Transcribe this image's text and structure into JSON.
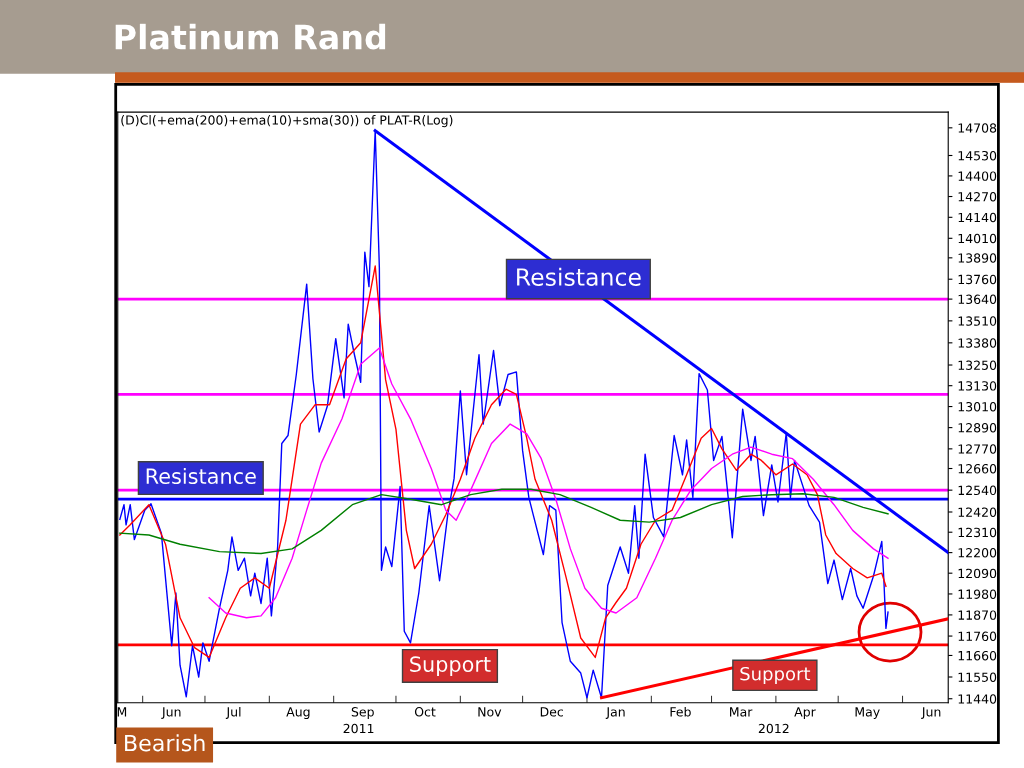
{
  "chart_data": {
    "type": "line",
    "title": "Platinum Rand",
    "subtitle": "(D)Cl(+ema(200)+ema(10)+sma(30)) of PLAT-R(Log)",
    "log": true,
    "xlim": [
      "2011-05-20",
      "2012-06-23"
    ],
    "xticks": [
      {
        "value": "2011-05-22",
        "label": "M"
      },
      {
        "value": "2011-06-01",
        "label": null
      },
      {
        "value": "2011-06-15",
        "label": "Jun"
      },
      {
        "value": "2011-07-01",
        "label": null
      },
      {
        "value": "2011-07-15",
        "label": "Jul"
      },
      {
        "value": "2011-08-01",
        "label": null
      },
      {
        "value": "2011-08-15",
        "label": "Aug"
      },
      {
        "value": "2011-09-01",
        "label": null
      },
      {
        "value": "2011-09-15",
        "label": "Sep"
      },
      {
        "value": "2011-10-01",
        "label": null
      },
      {
        "value": "2011-10-15",
        "label": "Oct"
      },
      {
        "value": "2011-11-01",
        "label": null
      },
      {
        "value": "2011-11-15",
        "label": "Nov"
      },
      {
        "value": "2011-12-01",
        "label": null
      },
      {
        "value": "2011-12-15",
        "label": "Dec"
      },
      {
        "value": "2012-01-01",
        "label": null
      },
      {
        "value": "2012-01-15",
        "label": "Jan"
      },
      {
        "value": "2012-02-01",
        "label": null
      },
      {
        "value": "2012-02-15",
        "label": "Feb"
      },
      {
        "value": "2012-03-01",
        "label": null
      },
      {
        "value": "2012-03-15",
        "label": "Mar"
      },
      {
        "value": "2012-04-01",
        "label": null
      },
      {
        "value": "2012-04-15",
        "label": "Apr"
      },
      {
        "value": "2012-05-01",
        "label": null
      },
      {
        "value": "2012-05-15",
        "label": "May"
      },
      {
        "value": "2012-06-01",
        "label": null
      },
      {
        "value": "2012-06-15",
        "label": "Jun"
      }
    ],
    "ylim": [
      11420,
      14810
    ],
    "yticks": [
      11440,
      11550,
      11660,
      11760,
      11870,
      11980,
      12090,
      12200,
      12310,
      12420,
      12540,
      12660,
      12770,
      12890,
      13010,
      13130,
      13250,
      13380,
      13510,
      13640,
      13760,
      13890,
      14010,
      14140,
      14270,
      14400,
      14530,
      14708
    ],
    "series": [
      {
        "color": "#0000ff",
        "x": [
          "2011-05-21",
          "2011-05-23",
          "2011-05-24",
          "2011-05-26",
          "2011-05-28",
          "2011-05-31",
          "2011-06-02",
          "2011-06-05",
          "2011-06-10",
          "2011-06-15",
          "2011-06-17",
          "2011-06-19",
          "2011-06-22",
          "2011-06-25",
          "2011-06-28",
          "2011-06-30",
          "2011-07-03",
          "2011-07-08",
          "2011-07-12",
          "2011-07-14",
          "2011-07-17",
          "2011-07-20",
          "2011-07-23",
          "2011-07-25",
          "2011-07-28",
          "2011-07-31",
          "2011-08-02",
          "2011-08-05",
          "2011-08-07",
          "2011-08-10",
          "2011-08-14",
          "2011-08-19",
          "2011-08-22",
          "2011-08-25",
          "2011-08-29",
          "2011-09-02",
          "2011-09-06",
          "2011-09-08",
          "2011-09-11",
          "2011-09-14",
          "2011-09-16",
          "2011-09-18",
          "2011-09-21",
          "2011-09-23",
          "2011-09-24",
          "2011-09-26",
          "2011-09-29",
          "2011-10-03",
          "2011-10-05",
          "2011-10-08",
          "2011-10-12",
          "2011-10-17",
          "2011-10-22",
          "2011-10-26",
          "2011-10-29",
          "2011-11-01",
          "2011-11-04",
          "2011-11-10",
          "2011-11-12",
          "2011-11-17",
          "2011-11-20",
          "2011-11-24",
          "2011-11-28",
          "2011-12-01",
          "2011-12-04",
          "2011-12-06",
          "2011-12-11",
          "2011-12-14",
          "2011-12-17",
          "2011-12-20",
          "2011-12-24",
          "2011-12-29",
          "2012-01-01",
          "2012-01-04",
          "2012-01-08",
          "2012-01-11",
          "2012-01-17",
          "2012-01-21",
          "2012-01-24",
          "2012-01-26",
          "2012-01-29",
          "2012-02-02",
          "2012-02-07",
          "2012-02-12",
          "2012-02-16",
          "2012-02-18",
          "2012-02-21",
          "2012-02-24",
          "2012-02-28",
          "2012-03-02",
          "2012-03-06",
          "2012-03-11",
          "2012-03-16",
          "2012-03-20",
          "2012-03-22",
          "2012-03-26",
          "2012-03-30",
          "2012-04-02",
          "2012-04-06",
          "2012-04-08",
          "2012-04-10",
          "2012-04-17",
          "2012-04-22",
          "2012-04-26",
          "2012-04-29",
          "2012-05-03",
          "2012-05-07",
          "2012-05-10",
          "2012-05-13",
          "2012-05-18",
          "2012-05-22",
          "2012-05-23",
          "2012-05-24",
          "2012-05-25"
        ],
        "values": [
          12380,
          12460,
          12350,
          12460,
          12270,
          12365,
          12430,
          12465,
          12305,
          11710,
          11985,
          11610,
          11450,
          11710,
          11550,
          11725,
          11630,
          11905,
          12105,
          12285,
          12105,
          12170,
          11970,
          12090,
          11930,
          12170,
          11865,
          12230,
          12800,
          12845,
          13195,
          13730,
          13170,
          12865,
          13015,
          13405,
          13060,
          13490,
          13310,
          13150,
          13925,
          13715,
          14690,
          13830,
          12105,
          12230,
          12125,
          12560,
          11785,
          11725,
          11985,
          12455,
          12050,
          12410,
          12605,
          13100,
          12625,
          13310,
          12910,
          13335,
          13015,
          13195,
          13210,
          12760,
          12500,
          12410,
          12190,
          12455,
          12430,
          11830,
          11630,
          11570,
          11445,
          11585,
          11445,
          12025,
          12230,
          12090,
          12455,
          12170,
          12740,
          12390,
          12285,
          12845,
          12625,
          12820,
          12500,
          13200,
          13105,
          12705,
          12840,
          12280,
          12995,
          12705,
          12840,
          12400,
          12680,
          12475,
          12860,
          12500,
          12705,
          12455,
          12365,
          12035,
          12160,
          11950,
          12115,
          11970,
          11905,
          12075,
          12260,
          12055,
          11800,
          11885
        ]
      },
      {
        "color": "#ff0000",
        "x": [
          "2011-05-21",
          "2011-05-26",
          "2011-06-04",
          "2011-06-12",
          "2011-06-19",
          "2011-06-26",
          "2011-07-03",
          "2011-07-11",
          "2011-07-18",
          "2011-07-25",
          "2011-08-01",
          "2011-08-09",
          "2011-08-16",
          "2011-08-23",
          "2011-08-30",
          "2011-09-07",
          "2011-09-14",
          "2011-09-21",
          "2011-09-26",
          "2011-10-01",
          "2011-10-06",
          "2011-10-10",
          "2011-10-18",
          "2011-10-25",
          "2011-11-01",
          "2011-11-08",
          "2011-11-16",
          "2011-11-23",
          "2011-11-28",
          "2011-12-03",
          "2011-12-07",
          "2011-12-15",
          "2011-12-22",
          "2011-12-29",
          "2012-01-05",
          "2012-01-10",
          "2012-01-15",
          "2012-01-20",
          "2012-01-27",
          "2012-02-03",
          "2012-02-11",
          "2012-02-18",
          "2012-02-25",
          "2012-03-01",
          "2012-03-06",
          "2012-03-13",
          "2012-03-20",
          "2012-03-25",
          "2012-04-01",
          "2012-04-09",
          "2012-04-16",
          "2012-04-21",
          "2012-04-25",
          "2012-04-30",
          "2012-05-08",
          "2012-05-15",
          "2012-05-22",
          "2012-05-24"
        ],
        "values": [
          12295,
          12350,
          12460,
          12245,
          11855,
          11700,
          11650,
          11855,
          12010,
          12065,
          12010,
          12375,
          12910,
          13020,
          13020,
          13285,
          13380,
          13840,
          13165,
          12880,
          12320,
          12115,
          12245,
          12405,
          12600,
          12830,
          13020,
          13110,
          13080,
          12830,
          12600,
          12375,
          12065,
          11750,
          11650,
          11855,
          11935,
          12010,
          12245,
          12375,
          12430,
          12625,
          12830,
          12885,
          12770,
          12650,
          12740,
          12705,
          12625,
          12685,
          12625,
          12515,
          12295,
          12195,
          12115,
          12065,
          12090,
          12020
        ]
      },
      {
        "color": "#ff00ff",
        "x": [
          "2011-07-03",
          "2011-07-11",
          "2011-07-21",
          "2011-07-28",
          "2011-08-04",
          "2011-08-12",
          "2011-08-19",
          "2011-08-26",
          "2011-09-05",
          "2011-09-14",
          "2011-09-23",
          "2011-09-29",
          "2011-10-08",
          "2011-10-18",
          "2011-10-25",
          "2011-10-30",
          "2011-11-06",
          "2011-11-16",
          "2011-11-25",
          "2011-12-03",
          "2011-12-10",
          "2011-12-17",
          "2011-12-24",
          "2011-12-31",
          "2012-01-08",
          "2012-01-15",
          "2012-01-25",
          "2012-02-03",
          "2012-02-11",
          "2012-02-20",
          "2012-03-01",
          "2012-03-11",
          "2012-03-20",
          "2012-03-30",
          "2012-04-09",
          "2012-04-19",
          "2012-04-29",
          "2012-05-08",
          "2012-05-18",
          "2012-05-25"
        ],
        "values": [
          11960,
          11880,
          11855,
          11865,
          11960,
          12170,
          12430,
          12690,
          12940,
          13255,
          13350,
          13140,
          12940,
          12660,
          12430,
          12375,
          12540,
          12800,
          12910,
          12855,
          12715,
          12490,
          12220,
          12010,
          11905,
          11880,
          11960,
          12170,
          12375,
          12540,
          12660,
          12740,
          12780,
          12740,
          12715,
          12600,
          12460,
          12320,
          12220,
          12170
        ]
      },
      {
        "color": "#008000",
        "x": [
          "2011-05-21",
          "2011-06-04",
          "2011-06-19",
          "2011-07-08",
          "2011-07-28",
          "2011-08-12",
          "2011-08-26",
          "2011-09-10",
          "2011-09-24",
          "2011-10-08",
          "2011-10-23",
          "2011-11-06",
          "2011-11-21",
          "2011-12-05",
          "2011-12-19",
          "2012-01-03",
          "2012-01-17",
          "2012-01-31",
          "2012-02-15",
          "2012-03-01",
          "2012-03-16",
          "2012-03-30",
          "2012-04-14",
          "2012-04-29",
          "2012-05-13",
          "2012-05-25"
        ],
        "values": [
          12305,
          12295,
          12245,
          12205,
          12195,
          12220,
          12320,
          12460,
          12515,
          12490,
          12460,
          12515,
          12545,
          12545,
          12515,
          12445,
          12375,
          12365,
          12390,
          12460,
          12505,
          12515,
          12520,
          12500,
          12445,
          12410
        ]
      },
      {
        "name": "Resistance",
        "color": "#0000ff",
        "x": [
          "2011-09-21",
          "2012-06-23"
        ],
        "values": [
          14690,
          12200
        ]
      },
      {
        "name": "Support",
        "color": "#ff0000",
        "x": [
          "2012-01-08",
          "2012-06-23"
        ],
        "values": [
          11445,
          11850
        ]
      }
    ],
    "ref_lines": [
      {
        "axis": "y",
        "value": 13640,
        "color": "#ff00ff"
      },
      {
        "axis": "y",
        "value": 13080,
        "color": "#ff00ff"
      },
      {
        "axis": "y",
        "value": 12540,
        "color": "#ff00ff"
      },
      {
        "axis": "y",
        "value": 12490,
        "color": "#0000ff",
        "label": "Resistance"
      },
      {
        "axis": "y",
        "value": 11715,
        "color": "#ff0000",
        "label": "Support"
      }
    ],
    "annotations": [
      "2011",
      "2012",
      "Bearish"
    ]
  }
}
